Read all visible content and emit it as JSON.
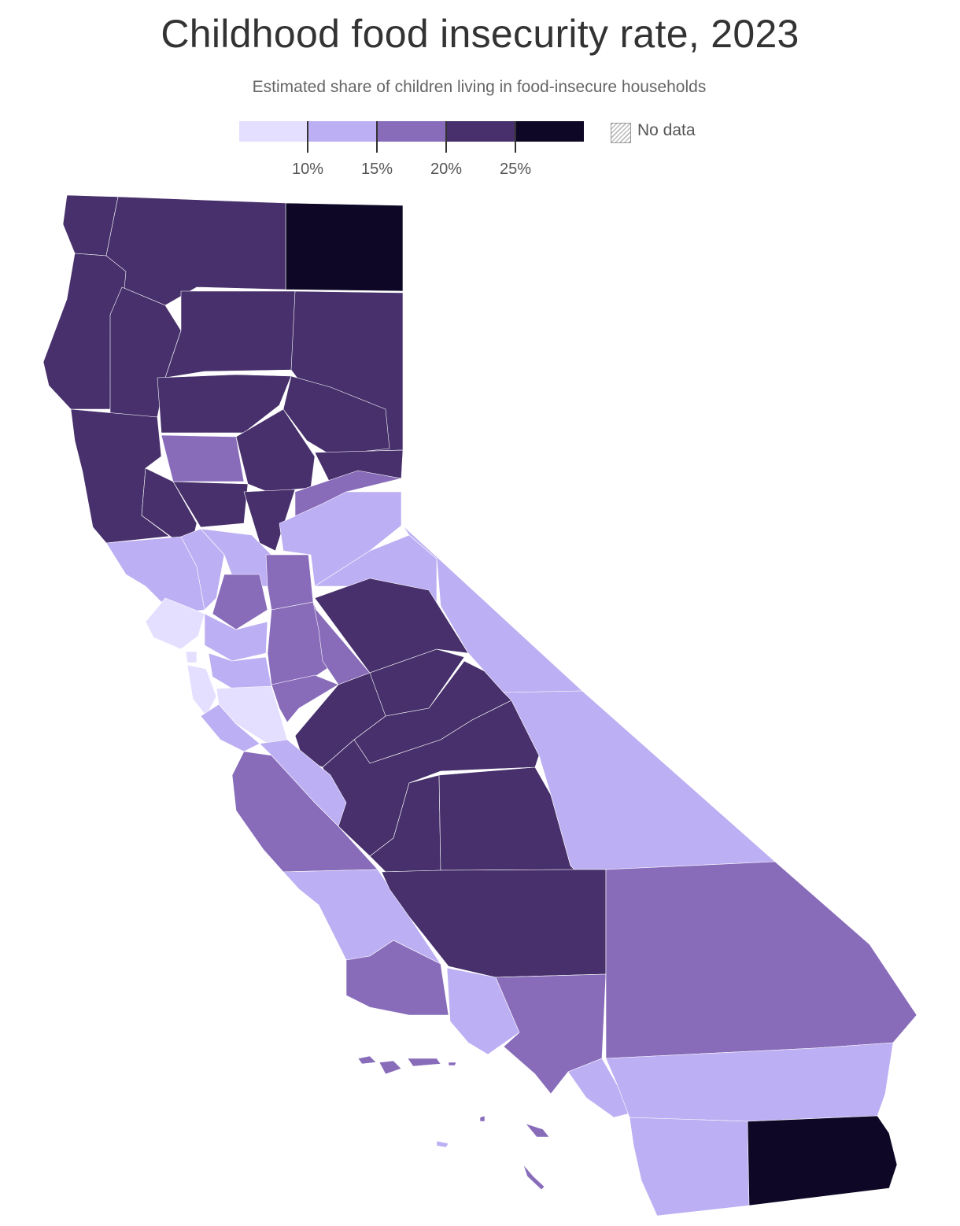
{
  "title": "Childhood food insecurity rate, 2023",
  "subtitle": "Estimated share of children living in food-insecure households",
  "legend": {
    "bins": [
      {
        "color": "#e5dfff"
      },
      {
        "color": "#bdaff3"
      },
      {
        "color": "#886cba"
      },
      {
        "color": "#47306b"
      },
      {
        "color": "#0e0826"
      }
    ],
    "ticks": [
      "10%",
      "15%",
      "20%",
      "25%"
    ],
    "no_data_label": "No data",
    "no_data_pattern": "diagonal-hatch"
  },
  "map": {
    "region": "California",
    "unit": "county",
    "colors": {
      "lt10": "#e5dfff",
      "10to15": "#bdaff3",
      "15to20": "#886cba",
      "20to25": "#47306b",
      "gt25": "#0e0826"
    }
  }
}
